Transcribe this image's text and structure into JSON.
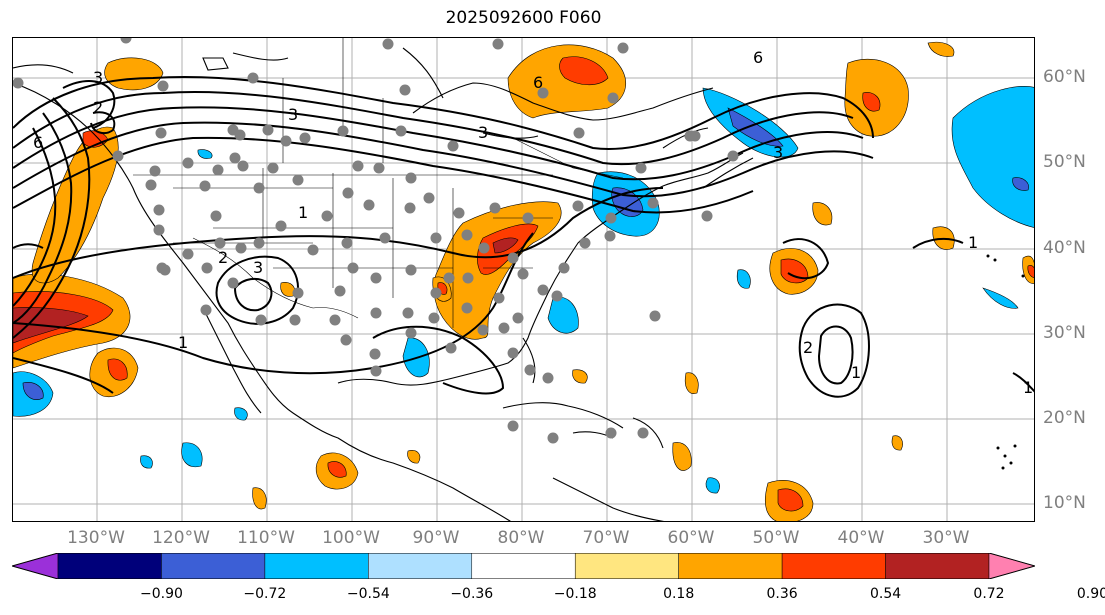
{
  "title": "2025092600 F060",
  "lon_labels": [
    "130°W",
    "120°W",
    "110°W",
    "100°W",
    "90°W",
    "80°W",
    "70°W",
    "60°W",
    "50°W",
    "40°W",
    "30°W"
  ],
  "lat_labels": [
    "60°N",
    "50°N",
    "40°N",
    "30°N",
    "20°N",
    "10°N"
  ],
  "contour_labels": [
    "1",
    "2",
    "3",
    "6"
  ],
  "colorbar": {
    "ticks": [
      "−0.90",
      "−0.72",
      "−0.54",
      "−0.36",
      "−0.18",
      "0.18",
      "0.36",
      "0.54",
      "0.72",
      "0.90"
    ],
    "colors": [
      "#9b30d9",
      "#00007a",
      "#3c5fd6",
      "#00bfff",
      "#aee0ff",
      "#ffffff",
      "#ffe680",
      "#ffa500",
      "#ff3c00",
      "#b22222",
      "#ff80b0"
    ]
  },
  "colors": {
    "positive_light": "#ffa500",
    "positive_mid": "#ff3c00",
    "positive_dark": "#b22222",
    "negative_light": "#00bfff",
    "negative_mid": "#3c5fd6",
    "station_marker": "#808080",
    "axis_label": "#7f7f7f"
  }
}
